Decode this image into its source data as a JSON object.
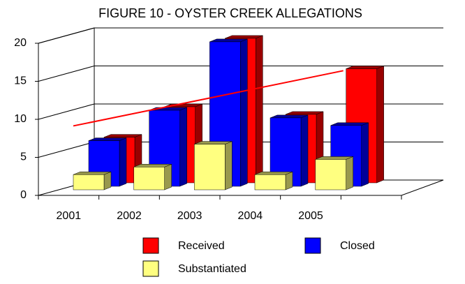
{
  "chart_data": {
    "type": "bar3d",
    "title": "FIGURE 10 - OYSTER CREEK ALLEGATIONS",
    "categories": [
      "2001",
      "2002",
      "2003",
      "2004",
      "2005"
    ],
    "series": [
      {
        "name": "Received",
        "color": "#ff0000",
        "values": [
          6,
          10,
          19,
          9,
          15
        ]
      },
      {
        "name": "Closed",
        "color": "#0000ff",
        "values": [
          6,
          10,
          19,
          9,
          8
        ]
      },
      {
        "name": "Substantiated",
        "color": "#ffff80",
        "values": [
          2,
          3,
          6,
          2,
          4
        ]
      }
    ],
    "ylim": [
      0,
      20
    ],
    "yticks": [
      0,
      5,
      10,
      15,
      20
    ],
    "grid": true,
    "trendline": "Received"
  }
}
